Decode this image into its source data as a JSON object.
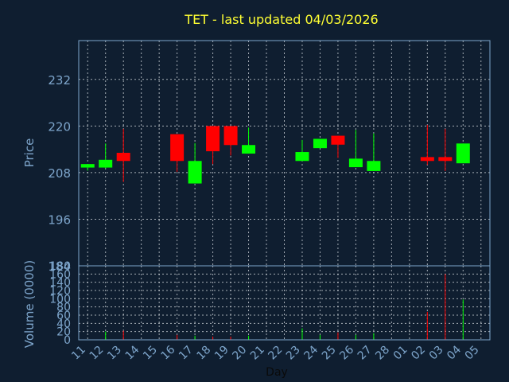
{
  "chart_data": [
    {
      "type": "candlestick",
      "title": "TET - last updated 04/03/2026",
      "ylabel": "Price",
      "ylim": [
        184,
        242
      ],
      "yticks": [
        "232",
        "220",
        "208",
        "196",
        "184"
      ],
      "grid": true,
      "colors": {
        "up": "#00ff00",
        "down": "#ff0000",
        "background": "#0f1e30",
        "frame": "#7ea6cc"
      },
      "candles": [
        {
          "day": "11",
          "open": 209.3,
          "high": 210.2,
          "low": 208.5,
          "close": 210.2
        },
        {
          "day": "12",
          "open": 209.3,
          "high": 215.5,
          "low": 209.1,
          "close": 211.3
        },
        {
          "day": "13",
          "open": 213.1,
          "high": 219.3,
          "low": 205.6,
          "close": 211.0
        },
        {
          "day": "16",
          "open": 217.9,
          "high": 217.9,
          "low": 208.2,
          "close": 211.0
        },
        {
          "day": "17",
          "open": 205.2,
          "high": 215.6,
          "low": 205.2,
          "close": 211.0
        },
        {
          "day": "18",
          "open": 220.0,
          "high": 220.0,
          "low": 210.2,
          "close": 213.5
        },
        {
          "day": "19",
          "open": 220.0,
          "high": 220.0,
          "low": 212.4,
          "close": 215.1
        },
        {
          "day": "20",
          "open": 212.9,
          "high": 219.6,
          "low": 212.9,
          "close": 215.1
        },
        {
          "day": "23",
          "open": 211.0,
          "high": 216.4,
          "low": 211.0,
          "close": 213.3
        },
        {
          "day": "24",
          "open": 214.3,
          "high": 216.7,
          "low": 214.3,
          "close": 216.7
        },
        {
          "day": "25",
          "open": 217.5,
          "high": 217.5,
          "low": 211.8,
          "close": 215.2
        },
        {
          "day": "26",
          "open": 209.4,
          "high": 219.0,
          "low": 209.4,
          "close": 211.6
        },
        {
          "day": "27",
          "open": 208.4,
          "high": 218.1,
          "low": 208.4,
          "close": 211.0
        },
        {
          "day": "02",
          "open": 212.0,
          "high": 220.3,
          "low": 210.0,
          "close": 211.0
        },
        {
          "day": "03",
          "open": 212.0,
          "high": 219.3,
          "low": 208.4,
          "close": 211.0
        },
        {
          "day": "04",
          "open": 210.4,
          "high": 215.5,
          "low": 210.4,
          "close": 215.5
        }
      ]
    },
    {
      "type": "bar",
      "ylabel": "Volume (0000)",
      "xlabel": "Day",
      "ylim": [
        0,
        180
      ],
      "yticks": [
        "180",
        "160",
        "140",
        "120",
        "100",
        "80",
        "60",
        "40",
        "20",
        "0"
      ],
      "categories": [
        "11",
        "12",
        "13",
        "14",
        "15",
        "16",
        "17",
        "18",
        "19",
        "20",
        "21",
        "22",
        "23",
        "24",
        "25",
        "26",
        "27",
        "28",
        "01",
        "02",
        "03",
        "04",
        "05"
      ],
      "bars": [
        {
          "day": "12",
          "value": 20,
          "direction": "up"
        },
        {
          "day": "13",
          "value": 22,
          "direction": "down"
        },
        {
          "day": "16",
          "value": 12,
          "direction": "down"
        },
        {
          "day": "17",
          "value": 10,
          "direction": "up"
        },
        {
          "day": "18",
          "value": 8,
          "direction": "down"
        },
        {
          "day": "19",
          "value": 8,
          "direction": "down"
        },
        {
          "day": "20",
          "value": 10,
          "direction": "up"
        },
        {
          "day": "23",
          "value": 28,
          "direction": "up"
        },
        {
          "day": "24",
          "value": 12,
          "direction": "up"
        },
        {
          "day": "25",
          "value": 18,
          "direction": "down"
        },
        {
          "day": "26",
          "value": 12,
          "direction": "up"
        },
        {
          "day": "27",
          "value": 16,
          "direction": "up"
        },
        {
          "day": "02",
          "value": 68,
          "direction": "down"
        },
        {
          "day": "03",
          "value": 160,
          "direction": "down"
        },
        {
          "day": "04",
          "value": 98,
          "direction": "up"
        }
      ]
    }
  ]
}
